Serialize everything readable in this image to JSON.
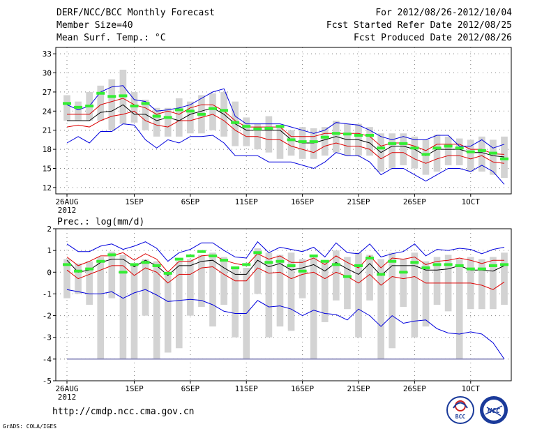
{
  "header": {
    "title": "DERF/NCC/BCC Monthly Forecast",
    "member_size": "Member Size=40",
    "variable1": "Mean Surf. Temp.: °C",
    "period": "For 2012/08/26-2012/10/04",
    "start_date": "Fcst Started Refer Date 2012/08/25",
    "produced_date": "Fcst Produced Date 2012/08/26"
  },
  "footer": {
    "url": "http://cmdp.ncc.cma.gov.cn",
    "credit": "GrADS: COLA/IGES",
    "logo_bcc": "BCC",
    "logo_ncc": "NCC"
  },
  "colors": {
    "box": "#d3d3d3",
    "mean": "#000000",
    "spread": "#dd0000",
    "extreme": "#0000dd",
    "obs_mark": "#33ee33",
    "grid": "#808080"
  },
  "chart_data": [
    {
      "type": "line",
      "title": "Mean Surf. Temp.: °C",
      "ylim": [
        11,
        34
      ],
      "yticks": [
        12,
        15,
        18,
        21,
        24,
        27,
        30,
        33
      ],
      "x_start_day": 0,
      "x_end_day": 39,
      "xtick_days": [
        0,
        6,
        11,
        16,
        21,
        26,
        31,
        36
      ],
      "xtick_labels": [
        "26AUG",
        "1SEP",
        "6SEP",
        "11SEP",
        "16SEP",
        "21SEP",
        "26SEP",
        "1OCT"
      ],
      "year_label": "2012",
      "days": [
        0,
        1,
        2,
        3,
        4,
        5,
        6,
        7,
        8,
        9,
        10,
        11,
        12,
        13,
        14,
        15,
        16,
        17,
        18,
        19,
        20,
        21,
        22,
        23,
        24,
        25,
        26,
        27,
        28,
        29,
        30,
        31,
        32,
        33,
        34,
        35,
        36,
        37,
        38,
        39
      ],
      "series": [
        {
          "name": "max",
          "values": [
            19,
            20,
            19,
            20.8,
            20.8,
            22,
            21.8,
            19.5,
            18.2,
            19.5,
            19,
            20,
            20,
            20.2,
            19,
            17,
            17,
            17,
            16,
            16,
            16,
            15.5,
            15,
            16,
            17.5,
            17,
            17,
            16,
            14,
            15,
            15,
            14,
            13,
            14,
            15,
            15,
            14.5,
            15.5,
            14.5,
            12.5
          ]
        },
        {
          "name": "upper_spread",
          "values": [
            21.5,
            21.8,
            21.5,
            22.5,
            23.2,
            23.5,
            24,
            22.5,
            21.8,
            21.5,
            22.5,
            22.5,
            23,
            23.5,
            22.5,
            21,
            20,
            20,
            19.5,
            19.5,
            18.5,
            18,
            17.5,
            18.5,
            19,
            18.5,
            18.5,
            18,
            16.5,
            17.5,
            17.5,
            16.5,
            15.8,
            16.5,
            17,
            17,
            16.5,
            17,
            16,
            15.8
          ]
        },
        {
          "name": "mean",
          "values": [
            22.5,
            22.5,
            22.5,
            23.8,
            24,
            25,
            23.5,
            23.5,
            22.5,
            23,
            22.5,
            23.5,
            24,
            24.5,
            23.5,
            22,
            21,
            21,
            21,
            21,
            19.5,
            19,
            19,
            19.5,
            20,
            19.5,
            19.5,
            19,
            17.5,
            18.5,
            18.5,
            18,
            17,
            18,
            18,
            18,
            17.5,
            17.5,
            17,
            16.8
          ]
        },
        {
          "name": "lower_spread",
          "values": [
            23.5,
            23.5,
            23.5,
            25,
            25.5,
            26,
            25,
            24.5,
            23.5,
            24,
            23.5,
            24.5,
            25,
            25,
            24,
            22.5,
            21.5,
            21.5,
            21.5,
            21.5,
            20,
            20,
            20,
            20.5,
            20.5,
            20.5,
            20.5,
            20,
            18.5,
            19,
            19,
            18.5,
            17.8,
            18.8,
            18.8,
            18.8,
            18,
            18,
            17.3,
            17.2
          ]
        },
        {
          "name": "min",
          "values": [
            25,
            24.2,
            24.8,
            27,
            27.8,
            28,
            25.8,
            25.5,
            24,
            24.2,
            24.5,
            25,
            26,
            27,
            27.5,
            23.2,
            22,
            22,
            22,
            22,
            21.5,
            21,
            20.5,
            21,
            22.2,
            22,
            21.8,
            21,
            20,
            19.5,
            20,
            19.5,
            19.5,
            20.2,
            20.2,
            18.5,
            18.5,
            19.5,
            18.2,
            18.8
          ]
        }
      ],
      "boxes": [
        {
          "low": 22.5,
          "high": 26.5
        },
        {
          "low": 22.5,
          "high": 25.5
        },
        {
          "low": 22.5,
          "high": 27
        },
        {
          "low": 22.5,
          "high": 28
        },
        {
          "low": 21,
          "high": 29
        },
        {
          "low": 22,
          "high": 30.5
        },
        {
          "low": 22.2,
          "high": 27
        },
        {
          "low": 21,
          "high": 25.8
        },
        {
          "low": 20,
          "high": 24.5
        },
        {
          "low": 20,
          "high": 24.5
        },
        {
          "low": 20,
          "high": 26
        },
        {
          "low": 20.5,
          "high": 25.5
        },
        {
          "low": 20.5,
          "high": 26.5
        },
        {
          "low": 21,
          "high": 26.8
        },
        {
          "low": 20,
          "high": 27
        },
        {
          "low": 18.5,
          "high": 25.5
        },
        {
          "low": 18.5,
          "high": 23
        },
        {
          "low": 18,
          "high": 22
        },
        {
          "low": 17.5,
          "high": 23.2
        },
        {
          "low": 16.5,
          "high": 21.8
        },
        {
          "low": 17,
          "high": 21
        },
        {
          "low": 16.5,
          "high": 21.5
        },
        {
          "low": 16.5,
          "high": 21.3
        },
        {
          "low": 17,
          "high": 21.5
        },
        {
          "low": 17.5,
          "high": 22.5
        },
        {
          "low": 17,
          "high": 22
        },
        {
          "low": 17,
          "high": 22
        },
        {
          "low": 17,
          "high": 21.5
        },
        {
          "low": 14.5,
          "high": 20.5
        },
        {
          "low": 15,
          "high": 20.5
        },
        {
          "low": 15.5,
          "high": 20.5
        },
        {
          "low": 15,
          "high": 20
        },
        {
          "low": 14,
          "high": 19.5
        },
        {
          "low": 14.5,
          "high": 20.3
        },
        {
          "low": 15.5,
          "high": 20
        },
        {
          "low": 15.5,
          "high": 19.7
        },
        {
          "low": 14.5,
          "high": 19.5
        },
        {
          "low": 14.5,
          "high": 20
        },
        {
          "low": 14,
          "high": 19.5
        },
        {
          "low": 13.5,
          "high": 20
        }
      ],
      "obs": [
        25.2,
        24.6,
        24.8,
        26.8,
        26.3,
        26.4,
        24.8,
        25.2,
        23.2,
        23,
        24.2,
        24,
        23.5,
        24.4,
        24.1,
        22.2,
        21.6,
        21.2,
        21.3,
        21.6,
        19.5,
        19.2,
        19.2,
        19.9,
        20.5,
        20.4,
        20.2,
        20.2,
        18.2,
        18.9,
        18.9,
        18.2,
        17.2,
        18.2,
        18.5,
        18.2,
        17.6,
        17.8,
        17.4,
        16.5
      ]
    },
    {
      "type": "line",
      "title": "Prec.: log(mm/d)",
      "ylim": [
        -5,
        2
      ],
      "yticks": [
        -5,
        -4,
        -3,
        -2,
        -1,
        0,
        1,
        2
      ],
      "x_start_day": 0,
      "x_end_day": 39,
      "xtick_days": [
        0,
        6,
        11,
        16,
        21,
        26,
        31,
        36
      ],
      "xtick_labels": [
        "26AUG",
        "1SEP",
        "6SEP",
        "11SEP",
        "16SEP",
        "21SEP",
        "26SEP",
        "1OCT"
      ],
      "year_label": "2012",
      "days": [
        0,
        1,
        2,
        3,
        4,
        5,
        6,
        7,
        8,
        9,
        10,
        11,
        12,
        13,
        14,
        15,
        16,
        17,
        18,
        19,
        20,
        21,
        22,
        23,
        24,
        25,
        26,
        27,
        28,
        29,
        30,
        31,
        32,
        33,
        34,
        35,
        36,
        37,
        38,
        39
      ],
      "floor_value": -4,
      "series": [
        {
          "name": "max",
          "values": [
            1.3,
            0.95,
            0.95,
            1.2,
            1.3,
            1.05,
            1.2,
            1.4,
            1.1,
            0.5,
            0.9,
            1.05,
            1.35,
            1.35,
            1.0,
            0.7,
            0.65,
            1.4,
            0.9,
            1.15,
            1.05,
            0.95,
            1.15,
            0.7,
            1.35,
            0.9,
            0.85,
            1.3,
            0.7,
            0.85,
            0.95,
            1.3,
            0.75,
            1.05,
            1.0,
            1.1,
            1.05,
            0.85,
            1.05,
            1.15
          ]
        },
        {
          "name": "upper_spread",
          "values": [
            0.7,
            0.3,
            0.5,
            0.75,
            0.75,
            0.9,
            0.55,
            0.85,
            0.6,
            0.0,
            0.5,
            0.5,
            0.75,
            0.8,
            0.55,
            0.4,
            0.3,
            0.85,
            0.6,
            0.75,
            0.45,
            0.45,
            0.65,
            0.35,
            0.75,
            0.45,
            0.2,
            0.75,
            0.2,
            0.65,
            0.6,
            0.7,
            0.35,
            0.5,
            0.55,
            0.65,
            0.55,
            0.4,
            0.55,
            0.55
          ]
        },
        {
          "name": "mean",
          "values": [
            0.55,
            0.0,
            0.1,
            0.45,
            0.6,
            0.6,
            0.25,
            0.55,
            0.3,
            -0.15,
            0.3,
            0.3,
            0.5,
            0.55,
            0.2,
            -0.1,
            -0.1,
            0.55,
            0.25,
            0.4,
            0.1,
            0.2,
            0.35,
            0.05,
            0.45,
            0.15,
            -0.1,
            0.4,
            -0.15,
            0.3,
            0.3,
            0.3,
            0.1,
            0.1,
            0.15,
            0.3,
            0.1,
            0.1,
            0.05,
            0.3
          ]
        },
        {
          "name": "lower_spread",
          "values": [
            0.1,
            -0.3,
            -0.1,
            0.1,
            0.3,
            0.3,
            -0.15,
            0.2,
            0.0,
            -0.5,
            -0.1,
            -0.1,
            0.2,
            0.25,
            -0.1,
            -0.4,
            -0.4,
            0.2,
            -0.05,
            0.0,
            -0.3,
            -0.1,
            0.0,
            -0.3,
            0.0,
            -0.2,
            -0.5,
            -0.1,
            -0.6,
            -0.2,
            -0.3,
            -0.2,
            -0.5,
            -0.5,
            -0.5,
            -0.5,
            -0.5,
            -0.6,
            -0.8,
            -0.45
          ]
        },
        {
          "name": "min",
          "values": [
            -0.8,
            -0.9,
            -1.0,
            -1.0,
            -0.9,
            -1.2,
            -0.95,
            -0.8,
            -1.05,
            -1.35,
            -1.3,
            -1.25,
            -1.3,
            -1.5,
            -1.8,
            -1.9,
            -1.9,
            -1.3,
            -1.6,
            -1.55,
            -1.7,
            -2.0,
            -1.75,
            -1.9,
            -1.95,
            -2.2,
            -1.7,
            -2.0,
            -2.5,
            -2.0,
            -2.35,
            -2.25,
            -2.2,
            -2.6,
            -2.8,
            -2.85,
            -2.75,
            -2.85,
            -3.25,
            -4.0
          ]
        }
      ],
      "boxes": [
        {
          "low": -1.2,
          "high": 0.6
        },
        {
          "low": -1.0,
          "high": 0.4
        },
        {
          "low": -1.5,
          "high": 0.5
        },
        {
          "low": -4.0,
          "high": 0.7
        },
        {
          "low": -1.2,
          "high": 0.95
        },
        {
          "low": -4.0,
          "high": 0.8
        },
        {
          "low": -4.0,
          "high": 0.4
        },
        {
          "low": -2.0,
          "high": 0.6
        },
        {
          "low": -4.0,
          "high": 0.5
        },
        {
          "low": -3.7,
          "high": 0.0
        },
        {
          "low": -3.5,
          "high": 0.5
        },
        {
          "low": -2.0,
          "high": 0.6
        },
        {
          "low": -1.6,
          "high": 0.8
        },
        {
          "low": -2.5,
          "high": 0.9
        },
        {
          "low": -1.5,
          "high": 0.7
        },
        {
          "low": -3.0,
          "high": 0.2
        },
        {
          "low": -4.0,
          "high": 0.2
        },
        {
          "low": -1.0,
          "high": 1.1
        },
        {
          "low": -3.0,
          "high": 0.9
        },
        {
          "low": -2.5,
          "high": 0.8
        },
        {
          "low": -2.7,
          "high": 0.9
        },
        {
          "low": -1.2,
          "high": 0.6
        },
        {
          "low": -4.0,
          "high": 0.8
        },
        {
          "low": -2.3,
          "high": 0.5
        },
        {
          "low": -1.3,
          "high": 1.0
        },
        {
          "low": -1.7,
          "high": 0.7
        },
        {
          "low": -3.0,
          "high": 0.9
        },
        {
          "low": -1.3,
          "high": 0.8
        },
        {
          "low": -4.0,
          "high": 0.6
        },
        {
          "low": -3.5,
          "high": 0.9
        },
        {
          "low": -1.6,
          "high": 0.6
        },
        {
          "low": -3.0,
          "high": 0.9
        },
        {
          "low": -2.5,
          "high": 0.5
        },
        {
          "low": -1.5,
          "high": 0.7
        },
        {
          "low": -1.8,
          "high": 0.8
        },
        {
          "low": -4.0,
          "high": 0.6
        },
        {
          "low": -1.7,
          "high": 0.7
        },
        {
          "low": -1.7,
          "high": 0.6
        },
        {
          "low": -1.7,
          "high": 0.7
        },
        {
          "low": -1.5,
          "high": 0.9
        }
      ],
      "obs": [
        0.35,
        0.05,
        0.15,
        0.5,
        0.8,
        0.0,
        0.35,
        0.45,
        0.3,
        -0.05,
        0.6,
        0.75,
        0.95,
        0.75,
        0.55,
        0.2,
        0.35,
        0.9,
        0.45,
        0.5,
        0.3,
        0.05,
        0.75,
        0.5,
        0.35,
        -0.2,
        0.3,
        0.65,
        -0.1,
        0.5,
        0.0,
        0.45,
        0.2,
        0.35,
        0.35,
        0.3,
        0.15,
        0.15,
        0.3,
        0.35
      ]
    }
  ]
}
